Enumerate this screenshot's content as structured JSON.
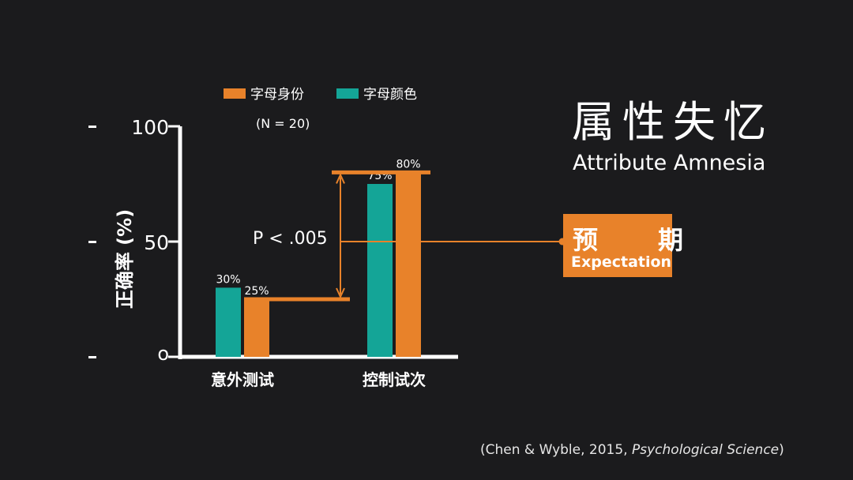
{
  "title": "属性失忆",
  "subtitle": "Attribute Amnesia",
  "expectation": {
    "zh": "预　期",
    "en": "Expectation"
  },
  "citation": {
    "prefix": "(Chen & Wyble, 2015, ",
    "journal": "Psychological Science",
    "suffix": ")"
  },
  "colors": {
    "background": "#1b1b1d",
    "identity": "#e8822a",
    "color": "#14a597",
    "axis": "#ffffff"
  },
  "chart_data": {
    "type": "bar",
    "ylabel": "正确率 (%)",
    "ylim": [
      0,
      100
    ],
    "yticks": [
      {
        "value": 100,
        "label": "100"
      },
      {
        "value": 50,
        "label": "50"
      },
      {
        "value": 0,
        "label": "o"
      }
    ],
    "legend": {
      "position": "top",
      "note": "(N = 20)"
    },
    "categories": [
      "意外测试",
      "控制试次"
    ],
    "series": [
      {
        "name": "字母身份",
        "color": "#e8822a",
        "values": [
          25,
          80
        ],
        "labels": [
          "25%",
          "80%"
        ]
      },
      {
        "name": "字母颜色",
        "color": "#14a597",
        "values": [
          30,
          75
        ],
        "labels": [
          "30%",
          "75%"
        ]
      }
    ],
    "annotation": "P < .005"
  }
}
